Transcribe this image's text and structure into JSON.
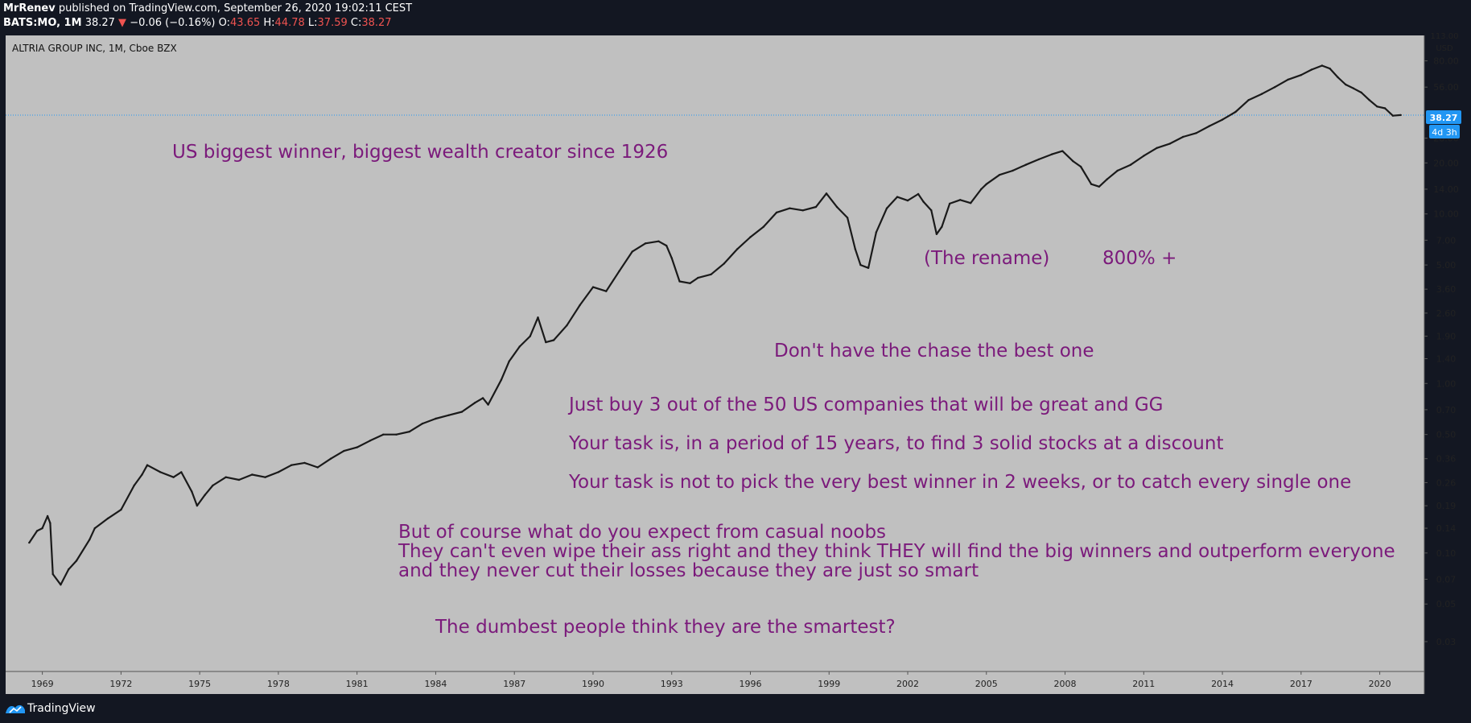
{
  "header": {
    "author": "MrRenev",
    "published_text": " published on TradingView.com, September 26, 2020 19:02:11 CEST",
    "symbol": "BATS:MO, 1M",
    "last": "38.27",
    "change": "−0.06 (−0.16%)",
    "o_label": "O:",
    "o": "43.65",
    "h_label": "H:",
    "h": "44.78",
    "l_label": "L:",
    "l": "37.59",
    "c_label": "C:",
    "c": "38.27"
  },
  "footer": {
    "brand": "TradingView"
  },
  "colors": {
    "background": "#131722",
    "plot_bg": "#c0c0c0",
    "annotation": "#7b1a7b",
    "price_tag": "#2196f3",
    "candle": "#1a1a1a"
  },
  "chart_data": {
    "type": "line",
    "title": "ALTRIA GROUP INC, 1M, Cboe BZX",
    "y_scale": "log",
    "y_unit": "USD",
    "ylim": [
      0.02,
      113
    ],
    "xlim": [
      1967.6,
      2021.7
    ],
    "grid": false,
    "y_ticks": [
      80,
      56,
      28,
      20,
      14,
      10,
      7,
      5,
      3.6,
      2.6,
      1.9,
      1.4,
      1,
      0.7,
      0.5,
      0.36,
      0.26,
      0.19,
      0.14,
      0.1,
      0.07,
      0.05,
      0.03
    ],
    "y_tick_labels": [
      "80.00",
      "56.00",
      "28.00",
      "20.00",
      "14.00",
      "10.00",
      "7.00",
      "5.00",
      "3.60",
      "2.60",
      "1.90",
      "1.40",
      "1.00",
      "0.70",
      "0.50",
      "0.36",
      "0.26",
      "0.19",
      "0.14",
      "0.10",
      "0.07",
      "0.05",
      "0.03"
    ],
    "top_partial_tick": "113.00",
    "x_ticks": [
      1969,
      1972,
      1975,
      1978,
      1981,
      1984,
      1987,
      1990,
      1993,
      1996,
      1999,
      2002,
      2005,
      2008,
      2011,
      2014,
      2017,
      2020
    ],
    "x_tick_labels": [
      "1969",
      "1972",
      "1975",
      "1978",
      "1981",
      "1984",
      "1987",
      "1990",
      "1993",
      "1996",
      "1999",
      "2002",
      "2005",
      "2008",
      "2011",
      "2014",
      "2017",
      "2020"
    ],
    "price_line": 38.27,
    "price_label": "38.27",
    "countdown_label": "4d 3h",
    "series": [
      {
        "x": [
          1968.5,
          1968.8,
          1969.0,
          1969.2,
          1969.3,
          1969.4,
          1969.7,
          1970.0,
          1970.3,
          1970.8,
          1971.0,
          1971.5,
          1972.0,
          1972.5,
          1972.8,
          1973.0,
          1973.5,
          1974.0,
          1974.3,
          1974.7,
          1974.9,
          1975.2,
          1975.5,
          1976.0,
          1976.5,
          1977.0,
          1977.5,
          1978.0,
          1978.5,
          1979.0,
          1979.5,
          1980.0,
          1980.5,
          1981.0,
          1981.5,
          1982.0,
          1982.5,
          1983.0,
          1983.5,
          1984.0,
          1984.5,
          1985.0,
          1985.5,
          1985.8,
          1986.0,
          1986.5,
          1986.8,
          1987.2,
          1987.6,
          1987.9,
          1988.2,
          1988.5,
          1989.0,
          1989.5,
          1990.0,
          1990.5,
          1991.0,
          1991.5,
          1992.0,
          1992.5,
          1992.8,
          1993.0,
          1993.3,
          1993.7,
          1994.0,
          1994.5,
          1995.0,
          1995.5,
          1996.0,
          1996.5,
          1997.0,
          1997.5,
          1998.0,
          1998.5,
          1998.9,
          1999.3,
          1999.7,
          2000.0,
          2000.2,
          2000.5,
          2000.8,
          2001.2,
          2001.6,
          2002.0,
          2002.4,
          2002.6,
          2002.9,
          2003.1,
          2003.3,
          2003.6,
          2004.0,
          2004.4,
          2004.8,
          2005.0,
          2005.5,
          2006.0,
          2006.5,
          2007.0,
          2007.5,
          2007.9,
          2008.3,
          2008.6,
          2009.0,
          2009.3,
          2009.6,
          2010.0,
          2010.5,
          2011.0,
          2011.5,
          2012.0,
          2012.5,
          2013.0,
          2013.5,
          2014.0,
          2014.5,
          2015.0,
          2015.5,
          2016.0,
          2016.5,
          2017.0,
          2017.4,
          2017.8,
          2018.1,
          2018.4,
          2018.7,
          2019.0,
          2019.3,
          2019.6,
          2019.9,
          2020.2,
          2020.5,
          2020.8
        ],
        "y": [
          0.115,
          0.135,
          0.14,
          0.165,
          0.15,
          0.075,
          0.065,
          0.08,
          0.09,
          0.12,
          0.14,
          0.16,
          0.18,
          0.25,
          0.29,
          0.33,
          0.3,
          0.28,
          0.3,
          0.23,
          0.19,
          0.22,
          0.25,
          0.28,
          0.27,
          0.29,
          0.28,
          0.3,
          0.33,
          0.34,
          0.32,
          0.36,
          0.4,
          0.42,
          0.46,
          0.5,
          0.5,
          0.52,
          0.58,
          0.62,
          0.65,
          0.68,
          0.77,
          0.82,
          0.75,
          1.05,
          1.35,
          1.65,
          1.9,
          2.45,
          1.75,
          1.8,
          2.2,
          2.9,
          3.7,
          3.5,
          4.6,
          6.0,
          6.7,
          6.9,
          6.5,
          5.5,
          4.0,
          3.9,
          4.2,
          4.4,
          5.1,
          6.2,
          7.3,
          8.4,
          10.2,
          10.8,
          10.5,
          11.0,
          13.2,
          11.0,
          9.5,
          6.2,
          5.0,
          4.8,
          7.8,
          10.8,
          12.6,
          12.0,
          13.1,
          11.8,
          10.5,
          7.6,
          8.4,
          11.5,
          12.1,
          11.6,
          14.0,
          15.0,
          17.0,
          18.0,
          19.5,
          21.0,
          22.5,
          23.5,
          20.5,
          19.0,
          15.0,
          14.5,
          16.0,
          18.0,
          19.5,
          22.0,
          24.5,
          26.0,
          28.5,
          30.0,
          33.0,
          36.0,
          40.0,
          47.0,
          51.0,
          56.0,
          62.0,
          66.0,
          71.0,
          75.0,
          72.0,
          64.0,
          58.0,
          55.0,
          52.0,
          47.0,
          43.0,
          42.0,
          38.0,
          38.3
        ]
      }
    ],
    "annotations": [
      "US biggest winner, biggest wealth creator since 1926",
      "(The rename)",
      "800% +",
      "Don't have the chase the best one",
      "Just buy 3 out of the 50 US companies that will be great and GG",
      "Your task is, in a period of 15 years, to find 3 solid stocks at a discount",
      "Your task is not to pick the very best winner in 2 weeks, or to catch every single one",
      "But of course what do you expect from casual noobs",
      "They can't even wipe their ass right and they think THEY will find the big winners and outperform everyone",
      "and they never cut their losses because they are just so smart",
      "The dumbest people think they are the smartest?"
    ]
  }
}
